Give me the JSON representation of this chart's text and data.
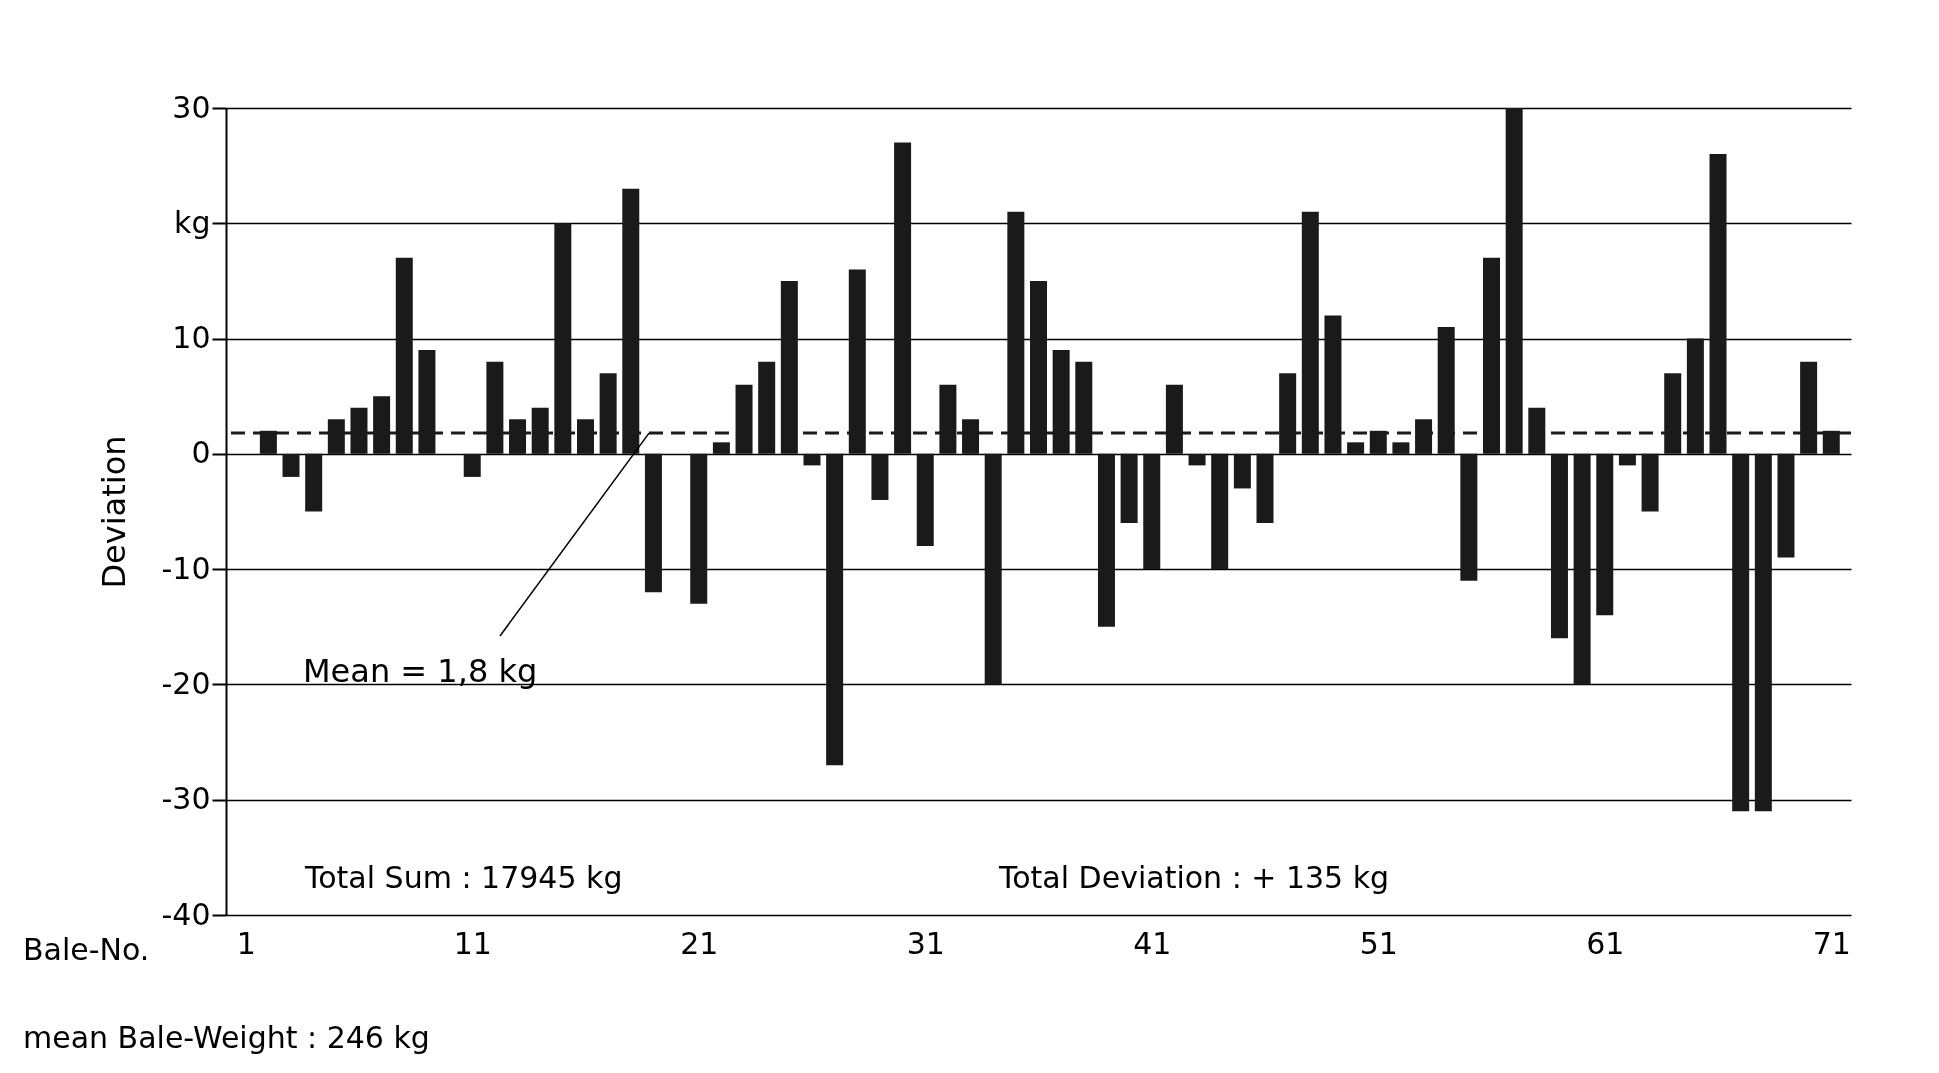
{
  "chart_data": {
    "type": "bar",
    "xlabel": "Bale-No.",
    "ylabel": "Deviation",
    "x": [
      2,
      3,
      4,
      5,
      6,
      7,
      8,
      9,
      10,
      11,
      12,
      13,
      14,
      15,
      16,
      17,
      18,
      19,
      20,
      21,
      22,
      23,
      24,
      25,
      26,
      27,
      28,
      29,
      30,
      31,
      32,
      33,
      34,
      35,
      36,
      37,
      38,
      39,
      40,
      41,
      42,
      43,
      44,
      45,
      46,
      47,
      48,
      49,
      50,
      51,
      52,
      53,
      54,
      55,
      56,
      57,
      58,
      59,
      60,
      61,
      62,
      63,
      64,
      65,
      66,
      67,
      68,
      69,
      70,
      71
    ],
    "values": [
      2,
      -2,
      -5,
      3,
      4,
      5,
      17,
      9,
      0,
      -2,
      8,
      3,
      4,
      20,
      3,
      7,
      23,
      -12,
      0,
      -13,
      1,
      6,
      8,
      15,
      -1,
      -27,
      16,
      -4,
      27,
      -8,
      6,
      3,
      -20,
      21,
      15,
      9,
      8,
      -15,
      -6,
      -10,
      6,
      -1,
      -10,
      -3,
      -6,
      7,
      21,
      12,
      1,
      2,
      1,
      3,
      11,
      -11,
      17,
      30,
      4,
      -16,
      -20,
      -14,
      -1,
      -5,
      7,
      10,
      26,
      -31,
      -31,
      -9,
      8,
      2
    ],
    "color": "#1a1a1a",
    "xlim": [
      0.35,
      71.65
    ],
    "xticks": [
      1,
      11,
      21,
      31,
      41,
      51,
      61,
      71
    ],
    "ylim": [
      -40,
      30
    ],
    "yticks": [
      30,
      {
        "value": 20,
        "label": "kg"
      },
      10,
      0,
      -10,
      -20,
      -30,
      -40
    ],
    "grid": "y",
    "ref_lines": [
      {
        "axis": "y",
        "value": 1.8,
        "label": "Mean = 1,8 kg",
        "line_style": "dashed",
        "color": "#1a1a1a"
      }
    ],
    "annotations": [
      "Total Sum : 17945 kg",
      "Total Deviation : + 135 kg",
      "mean Bale-Weight : 246 kg"
    ]
  }
}
